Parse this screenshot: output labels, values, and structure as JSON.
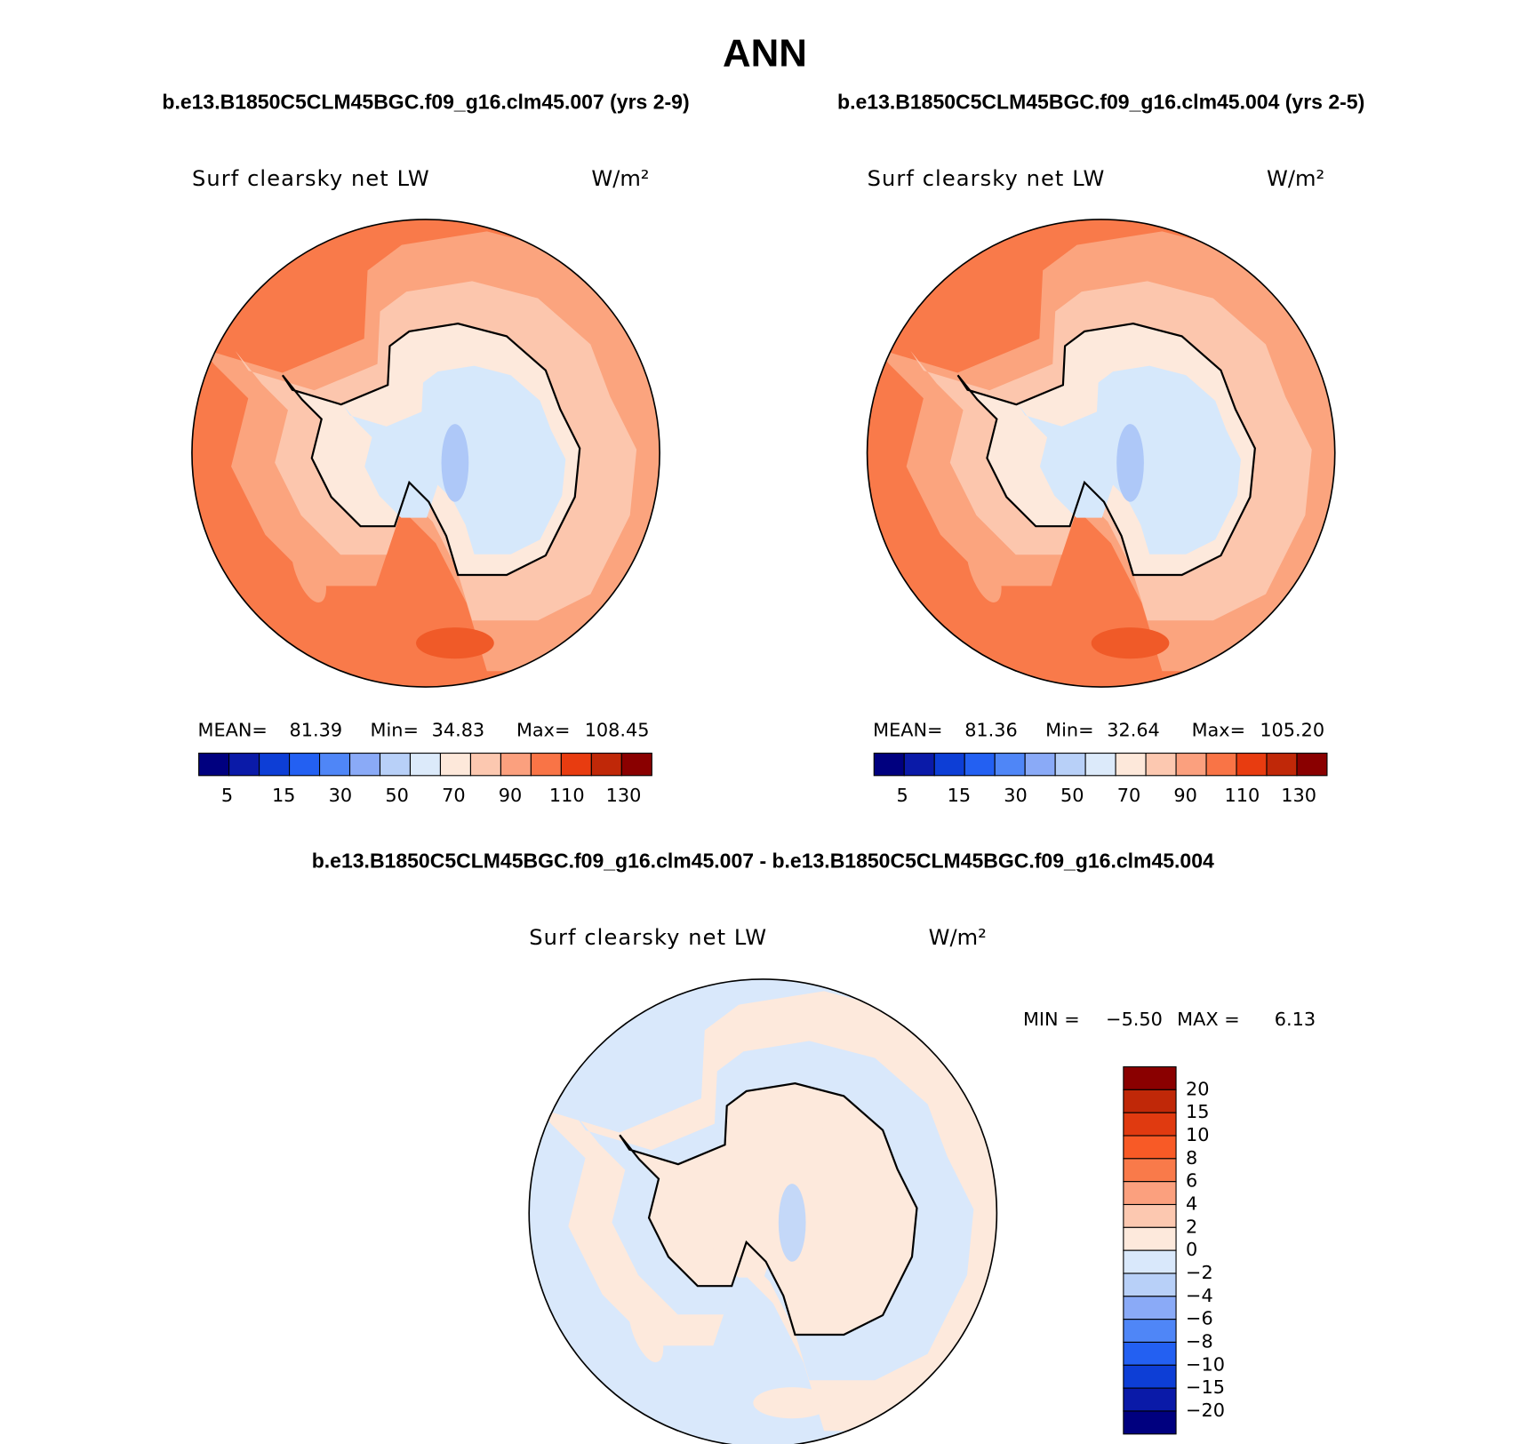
{
  "header": {
    "title": "ANN"
  },
  "panels": [
    {
      "subtitle": "b.e13.B1850C5CLM45BGC.f09_g16.clm45.007 (yrs 2-9)",
      "variable": "Surf clearsky net LW",
      "units": "W/m²",
      "stats": [
        {
          "label": "MEAN=",
          "value": "81.39"
        },
        {
          "label": "Min=",
          "value": "34.83"
        },
        {
          "label": "Max=",
          "value": "108.45"
        }
      ],
      "colorbar": {
        "labels": [
          "5",
          "15",
          "30",
          "50",
          "70",
          "90",
          "110",
          "130"
        ],
        "colors": [
          "#00007f",
          "#0a1aa8",
          "#0d3ed6",
          "#2360f2",
          "#4f86f7",
          "#8aaaf7",
          "#b8d0f8",
          "#dceafa",
          "#fde8da",
          "#fcc8b0",
          "#fba07e",
          "#f97446",
          "#e83c10",
          "#c02808",
          "#8a0000"
        ]
      },
      "colors": {
        "ocean": "#f97a4a",
        "ring1": "#fba47e",
        "ring2": "#fcc6ad",
        "coast": "#fde9dc",
        "interior": "#d6e8fb",
        "patch": "#aec8f8"
      }
    },
    {
      "subtitle": "b.e13.B1850C5CLM45BGC.f09_g16.clm45.004 (yrs 2-5)",
      "variable": "Surf clearsky net LW",
      "units": "W/m²",
      "stats": [
        {
          "label": "MEAN=",
          "value": "81.36"
        },
        {
          "label": "Min=",
          "value": "32.64"
        },
        {
          "label": "Max=",
          "value": "105.20"
        }
      ],
      "colorbar": {
        "labels": [
          "5",
          "15",
          "30",
          "50",
          "70",
          "90",
          "110",
          "130"
        ],
        "colors": [
          "#00007f",
          "#0a1aa8",
          "#0d3ed6",
          "#2360f2",
          "#4f86f7",
          "#8aaaf7",
          "#b8d0f8",
          "#dceafa",
          "#fde8da",
          "#fcc8b0",
          "#fba07e",
          "#f97446",
          "#e83c10",
          "#c02808",
          "#8a0000"
        ]
      },
      "colors": {
        "ocean": "#f97a4a",
        "ring1": "#fba47e",
        "ring2": "#fcc6ad",
        "coast": "#fde9dc",
        "interior": "#d6e8fb",
        "patch": "#aec8f8"
      }
    }
  ],
  "difference": {
    "subtitle": "b.e13.B1850C5CLM45BGC.f09_g16.clm45.007 - b.e13.B1850C5CLM45BGC.f09_g16.clm45.004",
    "variable": "Surf clearsky net LW",
    "units": "W/m²",
    "stats": [
      {
        "label": "MIN =",
        "value": "−5.50"
      },
      {
        "label": "MAX =",
        "value": "6.13"
      }
    ],
    "colorbar": {
      "labels": [
        "20",
        "15",
        "10",
        "8",
        "6",
        "4",
        "2",
        "0",
        "−2",
        "−4",
        "−6",
        "−8",
        "−10",
        "−15",
        "−20"
      ],
      "colors": [
        "#8a0000",
        "#c02808",
        "#e03a10",
        "#f85a26",
        "#f97a4a",
        "#fba07e",
        "#fcc8b0",
        "#fde9dc",
        "#d9e8fb",
        "#b8d0f8",
        "#8aaaf7",
        "#4f86f7",
        "#2360f2",
        "#0d3ed6",
        "#0a1aa8",
        "#00007f"
      ]
    },
    "colors": {
      "ocean": "#d9e8fb",
      "ring1": "#fde9dc",
      "ring2": "#d9e8fb",
      "coast": "#fde9dc",
      "interior": "#fde9dc",
      "patch": "#c4d8f8"
    }
  }
}
